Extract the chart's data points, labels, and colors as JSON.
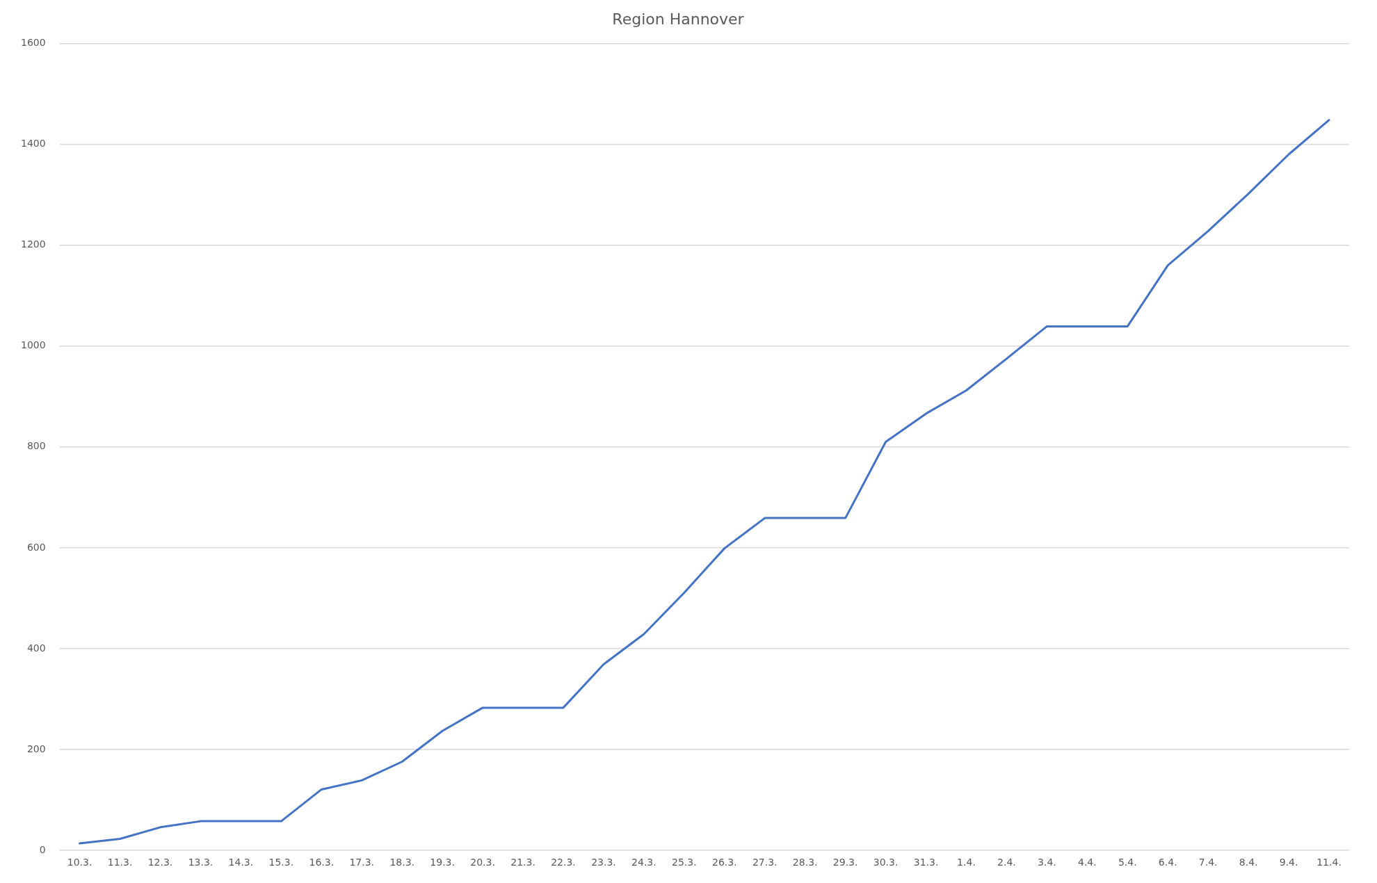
{
  "chart_data": {
    "type": "line",
    "title": "Region Hannover",
    "categories": [
      "10.3.",
      "11.3.",
      "12.3.",
      "13.3.",
      "14.3.",
      "15.3.",
      "16.3.",
      "17.3.",
      "18.3.",
      "19.3.",
      "20.3.",
      "21.3.",
      "22.3.",
      "23.3.",
      "24.3.",
      "25.3.",
      "26.3.",
      "27.3.",
      "28.3.",
      "29.3.",
      "30.3.",
      "31.3.",
      "1.4.",
      "2.4.",
      "3.4.",
      "4.4.",
      "5.4.",
      "6.4.",
      "7.4.",
      "8.4.",
      "9.4.",
      "11.4."
    ],
    "series": [
      {
        "color": "#4472c4",
        "values": [
          14,
          23,
          46,
          58,
          58,
          58,
          121,
          139,
          176,
          237,
          283,
          283,
          283,
          369,
          429,
          511,
          599,
          659,
          659,
          659,
          810,
          866,
          912,
          975,
          1039,
          1039,
          1039,
          1160,
          1228,
          1302,
          1380,
          1448
        ]
      }
    ],
    "ylim": [
      0,
      1600
    ],
    "yticks": [
      0,
      200,
      400,
      600,
      800,
      1000,
      1200,
      1400,
      1600
    ],
    "grid": "y",
    "legend": false,
    "marker": "none",
    "line_style": "solid"
  }
}
